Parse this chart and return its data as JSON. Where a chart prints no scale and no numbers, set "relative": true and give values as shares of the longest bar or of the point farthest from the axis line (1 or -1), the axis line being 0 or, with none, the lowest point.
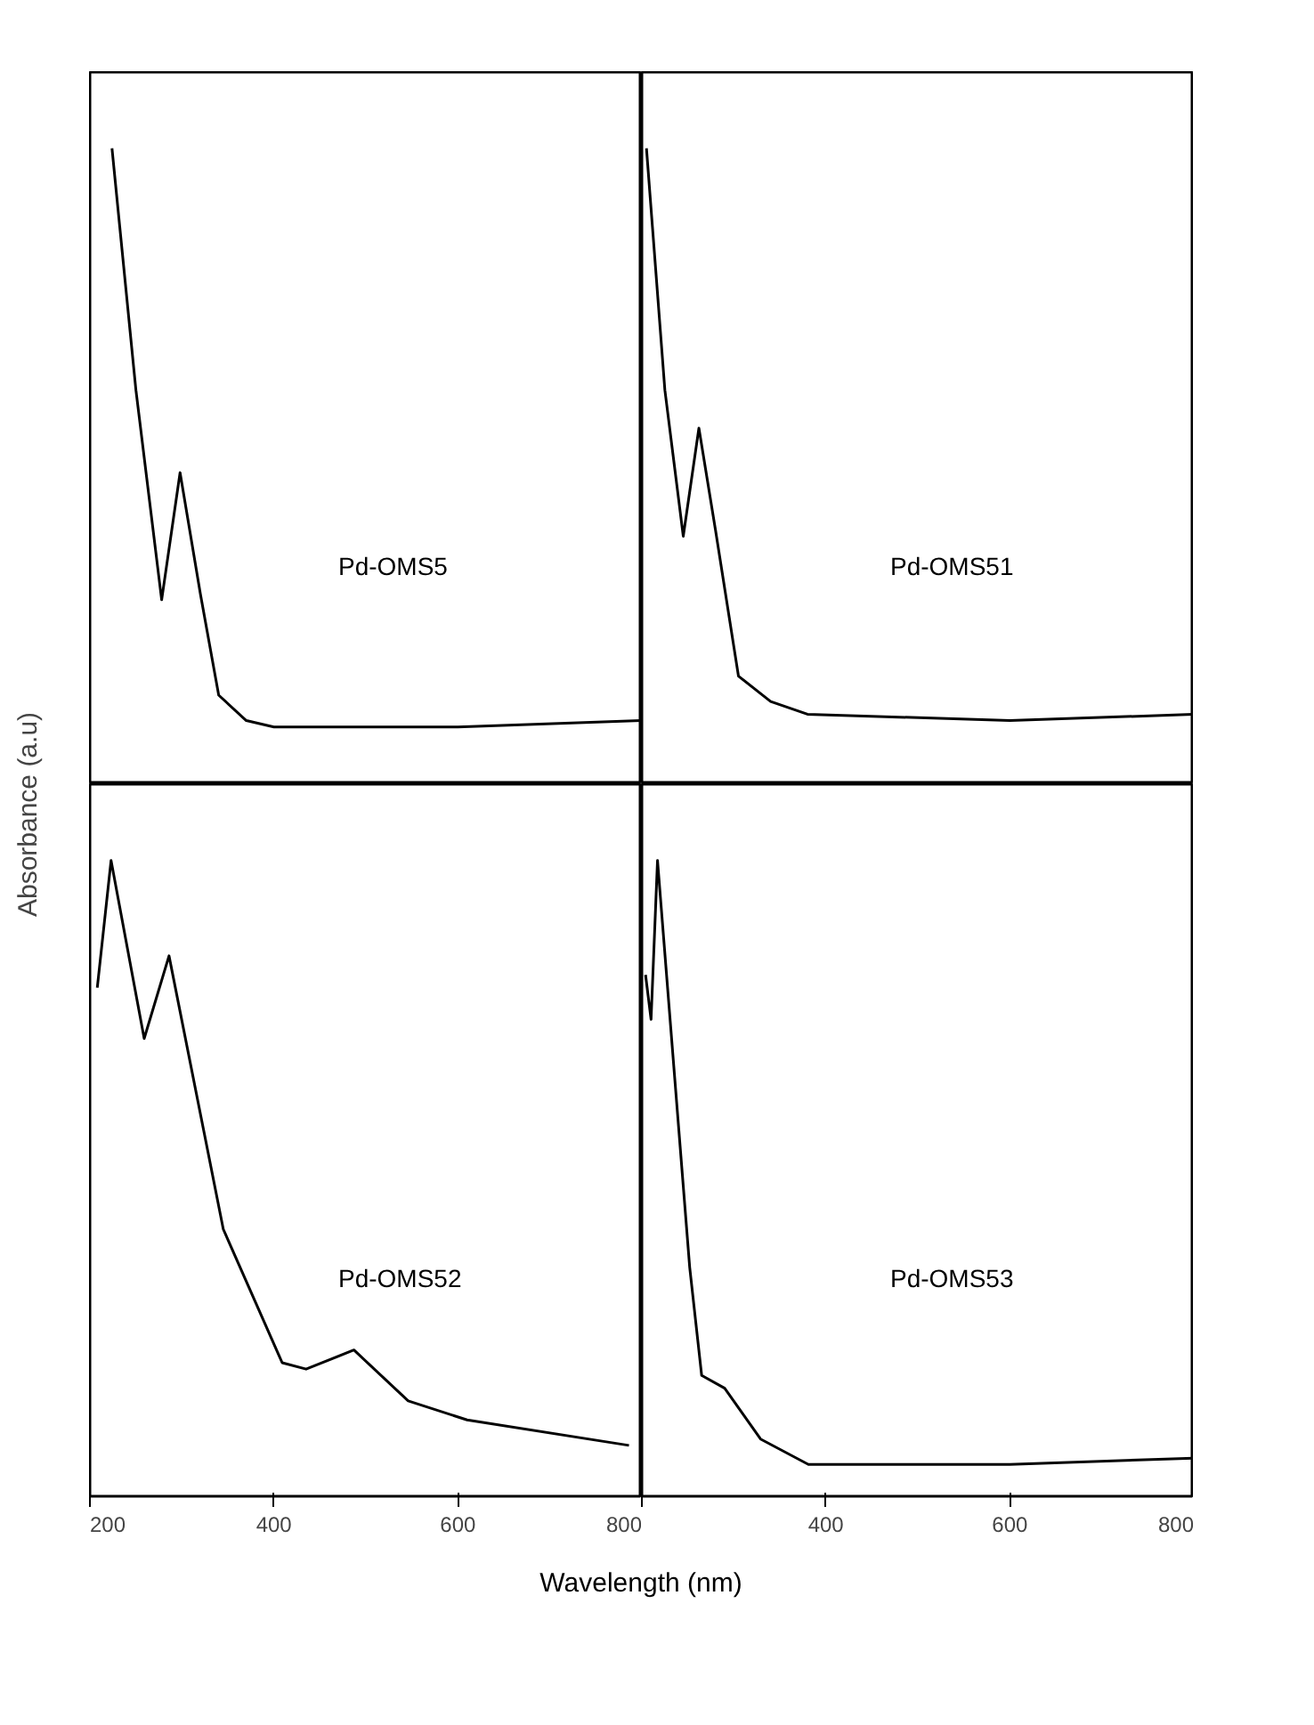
{
  "chart_data": [
    {
      "type": "line",
      "relative": true,
      "xlabel": "Wavelength (nm)",
      "ylabel": "Absorbance (a.u)",
      "xlim": [
        200,
        800
      ],
      "tick_labels": false,
      "x": [
        224,
        250,
        278,
        298,
        320,
        340,
        370,
        400,
        600,
        800
      ],
      "series": [
        {
          "name": "Pd-OMS5",
          "color": "#000000",
          "values": [
            1,
            0.62,
            0.29,
            0.49,
            0.3,
            0.14,
            0.1,
            0.09,
            0.09,
            0.1
          ]
        }
      ]
    },
    {
      "type": "line",
      "relative": true,
      "xlim": [
        200,
        800
      ],
      "tick_labels": false,
      "x": [
        205,
        225,
        245,
        262,
        280,
        305,
        340,
        380,
        600,
        800
      ],
      "series": [
        {
          "name": "Pd-OMS51",
          "color": "#000000",
          "values": [
            1,
            0.62,
            0.39,
            0.56,
            0.4,
            0.17,
            0.13,
            0.11,
            0.1,
            0.11
          ]
        }
      ]
    },
    {
      "type": "line",
      "relative": true,
      "xlim": [
        200,
        800
      ],
      "xticks": [
        200,
        400,
        600,
        800
      ],
      "tick_labels": "x",
      "x": [
        208,
        223,
        259,
        286,
        345,
        409,
        435,
        487,
        546,
        610,
        786
      ],
      "series": [
        {
          "name": "Pd-OMS52",
          "color": "#000000",
          "values": [
            0.8,
            1,
            0.72,
            0.85,
            0.42,
            0.21,
            0.2,
            0.23,
            0.15,
            0.12,
            0.08
          ]
        }
      ]
    },
    {
      "type": "line",
      "relative": true,
      "xlim": [
        200,
        800
      ],
      "xticks": [
        {
          "value": 200,
          "label": null
        },
        400,
        600,
        800
      ],
      "tick_labels": "x",
      "x": [
        204,
        210,
        217,
        252,
        265,
        290,
        329,
        381,
        600,
        800
      ],
      "series": [
        {
          "name": "Pd-OMS53",
          "color": "#000000",
          "values": [
            0.82,
            0.75,
            1,
            0.36,
            0.19,
            0.17,
            0.09,
            0.05,
            0.05,
            0.06
          ]
        }
      ]
    }
  ]
}
